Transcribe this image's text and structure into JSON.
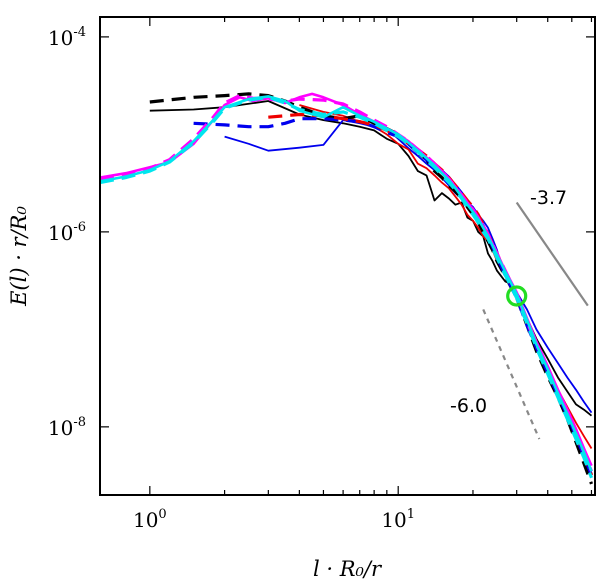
{
  "chart_data": {
    "type": "line",
    "title": "",
    "xlabel": "l · R₀/r",
    "ylabel": "E(l) · r/R₀",
    "xscale": "log",
    "yscale": "log",
    "xlim": [
      0.63,
      62
    ],
    "ylim": [
      2e-09,
      0.00016
    ],
    "xticks": [
      {
        "value": 1,
        "base": "10",
        "exp": "0"
      },
      {
        "value": 10,
        "base": "10",
        "exp": "1"
      }
    ],
    "yticks": [
      {
        "value": 1e-08,
        "base": "10",
        "exp": "-8"
      },
      {
        "value": 1e-06,
        "base": "10",
        "exp": "-6"
      },
      {
        "value": 0.0001,
        "base": "10",
        "exp": "-4"
      }
    ],
    "grid": false,
    "series": [
      {
        "color": "#000000",
        "dash": "solid",
        "width": 1.8,
        "x": [
          1.0,
          1.5,
          2.0,
          3.0,
          4.0,
          5.0,
          6.0,
          7.0,
          8.0,
          9.0,
          10.0,
          11.0,
          12.0,
          13.0,
          14.0,
          15.0,
          16.0,
          17.0,
          18.0,
          19.0,
          20.0,
          21.0,
          22.0,
          23.0,
          24.0,
          25.0,
          26.0,
          27.0,
          28.0,
          30.0,
          33.0,
          36.0,
          40.0,
          44.0,
          48.0,
          52.0,
          56.0,
          60.0
        ],
        "y": [
          1.75e-05,
          1.8e-05,
          1.9e-05,
          2.2e-05,
          1.6e-05,
          1.4e-05,
          1.3e-05,
          1.2e-05,
          1.1e-05,
          9e-06,
          8e-06,
          6e-06,
          4.2e-06,
          3.8e-06,
          2.1e-06,
          2.5e-06,
          2.2e-06,
          1.9e-06,
          2e-06,
          1.4e-06,
          1.3e-06,
          1e-06,
          9e-07,
          6e-07,
          5e-07,
          4e-07,
          3.5e-07,
          3.1e-07,
          3e-07,
          2.2e-07,
          1.3e-07,
          8e-08,
          5e-08,
          3.2e-08,
          2.3e-08,
          1.7e-08,
          1.5e-08,
          1.3e-08
        ]
      },
      {
        "color": "#0000ee",
        "dash": "solid",
        "width": 1.8,
        "x": [
          2.0,
          2.5,
          3.0,
          4.0,
          5.0,
          6.0,
          7.0,
          8.0,
          9.0,
          10.0,
          11.0,
          12.0,
          13.0,
          14.0,
          15.0,
          16.0,
          17.0,
          18.0,
          19.0,
          20.0,
          21.0,
          22.0,
          23.0,
          24.0,
          25.0,
          26.0,
          28.0,
          30.0,
          33.0,
          36.0,
          40.0,
          44.0,
          48.0,
          52.0,
          56.0,
          60.0
        ],
        "y": [
          9.5e-06,
          8e-06,
          6.8e-06,
          7.3e-06,
          7.8e-06,
          1.4e-05,
          1.3e-05,
          1.2e-05,
          1.15e-05,
          9e-06,
          7.2e-06,
          6e-06,
          5e-06,
          4.3e-06,
          3.6e-06,
          3e-06,
          2.5e-06,
          2.2e-06,
          2e-06,
          1.8e-06,
          1.5e-06,
          1.3e-06,
          1.1e-06,
          8.5e-07,
          6.5e-07,
          4.5e-07,
          3.3e-07,
          2.4e-07,
          1.6e-07,
          1e-07,
          6.5e-08,
          4.5e-08,
          3.2e-08,
          2.4e-08,
          1.8e-08,
          1.4e-08
        ]
      },
      {
        "color": "#ee0000",
        "dash": "solid",
        "width": 1.8,
        "x": [
          4.0,
          5.0,
          6.0,
          7.0,
          8.0,
          9.0,
          10.0,
          11.0,
          12.0,
          13.0,
          14.0,
          15.0,
          16.0,
          17.0,
          18.0,
          19.0,
          20.0,
          21.0,
          22.0,
          23.0,
          24.0,
          25.0,
          27.0,
          30.0,
          33.0,
          36.0,
          40.0,
          44.0,
          48.0,
          52.0,
          56.0,
          60.0
        ],
        "y": [
          2e-05,
          1.7e-05,
          1.55e-05,
          1.35e-05,
          1.2e-05,
          1e-05,
          8e-06,
          7e-06,
          5e-06,
          4.5e-06,
          3.8e-06,
          3.2e-06,
          2.8e-06,
          2.3e-06,
          1.9e-06,
          1.5e-06,
          1.3e-06,
          1.1e-06,
          9e-07,
          8e-07,
          6.5e-07,
          5e-07,
          3.5e-07,
          2.2e-07,
          1.2e-07,
          7e-08,
          4e-08,
          2.4e-08,
          1.6e-08,
          1.1e-08,
          8e-09,
          6e-09
        ]
      },
      {
        "color": "#000000",
        "dash": "dashed",
        "width": 3.2,
        "x": [
          1.0,
          1.5,
          2.0,
          2.5,
          3.0,
          3.5,
          4.0,
          5.0,
          6.0,
          7.0,
          8.0,
          9.0,
          10.0,
          11.0,
          12.0,
          13.0,
          14.0,
          15.0,
          16.0,
          17.0,
          18.0,
          19.0,
          20.0,
          21.0,
          22.0,
          23.0,
          24.0,
          25.0,
          27.0,
          30.0,
          33.0,
          36.0,
          40.0,
          44.0,
          48.0,
          52.0,
          56.0,
          60.0
        ],
        "y": [
          2.15e-05,
          2.4e-05,
          2.5e-05,
          2.6e-05,
          2.5e-05,
          2.2e-05,
          1.9e-05,
          1.55e-05,
          1.45e-05,
          1.55e-05,
          1.3e-05,
          1.15e-05,
          1e-05,
          8e-06,
          6.5e-06,
          5.5e-06,
          4.2e-06,
          3.6e-06,
          3e-06,
          2.6e-06,
          2.2e-06,
          1.8e-06,
          1.5e-06,
          1.25e-06,
          1e-06,
          8e-07,
          6.5e-07,
          5e-07,
          3.5e-07,
          2.1e-07,
          1.1e-07,
          6e-08,
          3.3e-08,
          2e-08,
          1.2e-08,
          7e-09,
          4.2e-09,
          2.6e-09
        ]
      },
      {
        "color": "#0000ee",
        "dash": "dashed",
        "width": 3.2,
        "x": [
          1.5,
          2.0,
          2.5,
          3.0,
          3.5,
          4.0,
          5.0,
          6.0,
          7.0,
          8.0,
          9.0,
          10.0,
          11.0,
          12.0,
          13.0,
          14.0,
          15.0,
          16.0,
          17.0,
          18.0,
          19.0,
          20.0,
          21.0,
          22.0,
          23.0,
          24.0,
          25.0,
          27.0,
          30.0,
          33.0,
          36.0,
          40.0,
          44.0,
          48.0,
          52.0,
          56.0,
          60.0
        ],
        "y": [
          1.3e-05,
          1.25e-05,
          1.2e-05,
          1.2e-05,
          1.3e-05,
          1.45e-05,
          1.45e-05,
          1.4e-05,
          1.35e-05,
          1.2e-05,
          1.05e-05,
          9.5e-06,
          8e-06,
          6.5e-06,
          5.5e-06,
          4.8e-06,
          4.2e-06,
          3.6e-06,
          3e-06,
          2.5e-06,
          2e-06,
          1.7e-06,
          1.4e-06,
          1.15e-06,
          9e-07,
          7e-07,
          5.5e-07,
          3.6e-07,
          2.1e-07,
          1.1e-07,
          6.5e-08,
          3.6e-08,
          2.1e-08,
          1.3e-08,
          8e-09,
          5e-09,
          3.2e-09
        ]
      },
      {
        "color": "#ee0000",
        "dash": "dashed",
        "width": 3.2,
        "x": [
          3.0,
          3.5,
          4.0,
          5.0,
          6.0,
          7.0,
          8.0,
          9.0,
          10.0,
          11.0,
          12.0,
          13.0,
          14.0,
          15.0,
          16.0,
          17.0,
          18.0,
          19.0,
          20.0,
          21.0,
          22.0,
          23.0,
          24.0,
          25.0,
          27.0,
          30.0,
          33.0,
          36.0,
          40.0,
          44.0,
          48.0,
          52.0,
          56.0,
          60.0
        ],
        "y": [
          1.5e-05,
          1.55e-05,
          1.6e-05,
          1.55e-05,
          1.45e-05,
          1.35e-05,
          1.25e-05,
          1.1e-05,
          9.5e-06,
          8e-06,
          7e-06,
          6e-06,
          5e-06,
          4.3e-06,
          3.6e-06,
          3e-06,
          2.5e-06,
          2.1e-06,
          1.8e-06,
          1.5e-06,
          1.2e-06,
          9.5e-07,
          7.5e-07,
          6e-07,
          3.8e-07,
          2.2e-07,
          1.2e-07,
          7e-08,
          3.8e-08,
          2.1e-08,
          1.3e-08,
          8e-09,
          5e-09,
          3.2e-09
        ]
      },
      {
        "color": "#ff00ff",
        "dash": "solid",
        "width": 2.6,
        "x": [
          0.63,
          0.8,
          1.0,
          1.2,
          1.5,
          1.8,
          2.0,
          2.3,
          2.6,
          3.0,
          3.5,
          4.0,
          4.5,
          5.0,
          6.0,
          7.0,
          8.0,
          9.0,
          10.0,
          11.0,
          12.0,
          13.0,
          14.0,
          15.0,
          16.0,
          17.0,
          18.0,
          19.0,
          20.0,
          21.0,
          22.0,
          23.0,
          24.0,
          25.0,
          27.0,
          30.0,
          33.0,
          36.0,
          40.0,
          44.0,
          48.0,
          52.0,
          56.0,
          60.0
        ],
        "y": [
          3.6e-06,
          4e-06,
          4.6e-06,
          5.2e-06,
          8e-06,
          1.4e-05,
          2e-05,
          2.4e-05,
          2.2e-05,
          2.35e-05,
          2.1e-05,
          2.4e-05,
          2.6e-05,
          2.4e-05,
          2e-05,
          1.6e-05,
          1.35e-05,
          1.15e-05,
          1e-05,
          8.5e-06,
          7e-06,
          5.8e-06,
          5e-06,
          4.2e-06,
          3.5e-06,
          2.9e-06,
          2.4e-06,
          2e-06,
          1.7e-06,
          1.4e-06,
          1.15e-06,
          9.5e-07,
          7.5e-07,
          6e-07,
          4e-07,
          2.4e-07,
          1.3e-07,
          7.5e-08,
          4.2e-08,
          2.4e-08,
          1.5e-08,
          9.5e-09,
          6e-09,
          4e-09
        ]
      },
      {
        "color": "#ff00ff",
        "dash": "dashed",
        "width": 3.2,
        "x": [
          0.63,
          0.8,
          1.0,
          1.2,
          1.5,
          1.8,
          2.0,
          2.3,
          2.6,
          3.0,
          3.5,
          4.0,
          5.0,
          6.0,
          7.0,
          8.0,
          9.0,
          10.0,
          11.0,
          12.0,
          13.0,
          14.0,
          15.0,
          16.0,
          17.0,
          18.0,
          19.0,
          20.0,
          21.0,
          22.0,
          23.0,
          24.0,
          25.0,
          27.0,
          30.0,
          33.0,
          36.0,
          40.0,
          44.0,
          48.0,
          52.0,
          56.0,
          60.0
        ],
        "y": [
          3.5e-06,
          3.9e-06,
          4.5e-06,
          5.5e-06,
          9e-06,
          1.5e-05,
          2.1e-05,
          2.5e-05,
          2.35e-05,
          2.3e-05,
          2.2e-05,
          2.3e-05,
          2.25e-05,
          2.05e-05,
          1.7e-05,
          1.4e-05,
          1.2e-05,
          1e-05,
          8.5e-06,
          7e-06,
          6e-06,
          5e-06,
          4.2e-06,
          3.5e-06,
          2.9e-06,
          2.4e-06,
          2e-06,
          1.7e-06,
          1.4e-06,
          1.15e-06,
          9.5e-07,
          7.5e-07,
          6e-07,
          4e-07,
          2.3e-07,
          1.2e-07,
          7e-08,
          4e-08,
          2.3e-08,
          1.4e-08,
          8.5e-09,
          5.5e-09,
          3.5e-09
        ]
      },
      {
        "color": "#00e5ee",
        "dash": "solid",
        "width": 2.6,
        "x": [
          0.63,
          0.8,
          1.0,
          1.2,
          1.5,
          1.8,
          2.0,
          2.5,
          3.0,
          3.5,
          4.0,
          5.0,
          6.0,
          7.0,
          8.0,
          9.0,
          10.0,
          11.0,
          12.0,
          13.0,
          14.0,
          15.0,
          16.0,
          17.0,
          18.0,
          19.0,
          20.0,
          21.0,
          22.0,
          23.0,
          24.0,
          25.0,
          27.0,
          30.0,
          33.0,
          36.0,
          40.0,
          44.0,
          48.0,
          52.0,
          56.0,
          60.0
        ],
        "y": [
          3.3e-06,
          3.7e-06,
          4.3e-06,
          5.3e-06,
          8.5e-06,
          1.4e-05,
          1.9e-05,
          2.3e-05,
          2.45e-05,
          2.2e-05,
          1.75e-05,
          1.5e-05,
          1.9e-05,
          1.55e-05,
          1.35e-05,
          1.15e-05,
          1e-05,
          8.2e-06,
          6.8e-06,
          5.7e-06,
          4.8e-06,
          4e-06,
          3.4e-06,
          2.8e-06,
          2.3e-06,
          1.9e-06,
          1.6e-06,
          1.35e-06,
          1.1e-06,
          9e-07,
          7.2e-07,
          5.8e-07,
          3.9e-07,
          2.3e-07,
          1.25e-07,
          7e-08,
          3.9e-08,
          2.2e-08,
          1.35e-08,
          8.5e-09,
          5.5e-09,
          3.5e-09
        ]
      },
      {
        "color": "#00e5ee",
        "dash": "dashed",
        "width": 3.2,
        "x": [
          0.63,
          0.8,
          1.0,
          1.2,
          1.5,
          1.8,
          2.0,
          2.5,
          3.0,
          3.5,
          4.0,
          5.0,
          6.0,
          7.0,
          8.0,
          9.0,
          10.0,
          11.0,
          12.0,
          13.0,
          14.0,
          15.0,
          16.0,
          17.0,
          18.0,
          19.0,
          20.0,
          21.0,
          22.0,
          23.0,
          24.0,
          25.0,
          27.0,
          30.0,
          33.0,
          36.0,
          40.0,
          44.0,
          48.0,
          52.0,
          56.0,
          60.0
        ],
        "y": [
          3.2e-06,
          3.6e-06,
          4.2e-06,
          5.2e-06,
          8.2e-06,
          1.35e-05,
          1.85e-05,
          2.25e-05,
          2.4e-05,
          2.1e-05,
          1.8e-05,
          1.6e-05,
          1.7e-05,
          1.5e-05,
          1.3e-05,
          1.1e-05,
          9.5e-06,
          8e-06,
          6.6e-06,
          5.5e-06,
          4.6e-06,
          3.8e-06,
          3.2e-06,
          2.7e-06,
          2.2e-06,
          1.8e-06,
          1.5e-06,
          1.25e-06,
          1e-06,
          8.5e-07,
          6.8e-07,
          5.4e-07,
          3.6e-07,
          2.1e-07,
          1.15e-07,
          6.5e-08,
          3.5e-08,
          2e-08,
          1.2e-08,
          7.5e-09,
          4.8e-09,
          3e-09
        ]
      }
    ],
    "reference_lines": [
      {
        "label": "-3.7",
        "slope": -3.7,
        "color": "#888888",
        "dash": "solid",
        "x": [
          30.0,
          58.0
        ],
        "y": [
          2e-06,
          1.75e-07
        ]
      },
      {
        "label": "-6.0",
        "slope": -6.0,
        "color": "#888888",
        "dash": "dotted",
        "x": [
          22.0,
          37.0
        ],
        "y": [
          1.6e-07,
          7.5e-09
        ]
      }
    ],
    "marker": {
      "shape": "circle",
      "color": "#22dd22",
      "x": 30.0,
      "y": 2.2e-07
    }
  }
}
